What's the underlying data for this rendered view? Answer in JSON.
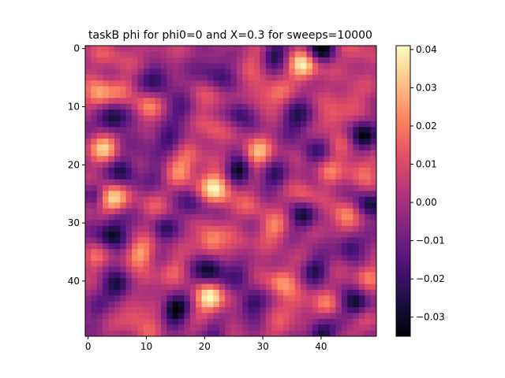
{
  "chart_data": {
    "type": "heatmap",
    "title": "taskB phi for phi0=0 and X=0.3 for sweeps=10000",
    "xlabel": "",
    "ylabel": "",
    "grid_size": 50,
    "x_range": [
      0,
      49
    ],
    "y_range": [
      0,
      49
    ],
    "y_inverted": true,
    "x_ticks": [
      0,
      10,
      20,
      30,
      40
    ],
    "y_ticks": [
      0,
      10,
      20,
      30,
      40
    ],
    "colormap": "magma",
    "value_range": [
      -0.035,
      0.041
    ],
    "colorbar_ticks": [
      {
        "value": 0.04,
        "label": "0.04"
      },
      {
        "value": 0.03,
        "label": "0.03"
      },
      {
        "value": 0.02,
        "label": "0.02"
      },
      {
        "value": 0.01,
        "label": "0.01"
      },
      {
        "value": 0.0,
        "label": "0.00"
      },
      {
        "value": -0.01,
        "label": "−0.01"
      },
      {
        "value": -0.02,
        "label": "−0.02"
      },
      {
        "value": -0.03,
        "label": "−0.03"
      }
    ],
    "features": [
      {
        "x": 37,
        "y": 3,
        "amp": 0.038,
        "w": 1.8
      },
      {
        "x": 40,
        "y": 0,
        "amp": -0.034,
        "w": 1.6
      },
      {
        "x": 32,
        "y": 1,
        "amp": -0.025,
        "w": 1.6
      },
      {
        "x": 28,
        "y": 2,
        "amp": 0.012,
        "w": 2.0
      },
      {
        "x": 46,
        "y": 1,
        "amp": 0.012,
        "w": 2.0
      },
      {
        "x": 12,
        "y": 2,
        "amp": 0.01,
        "w": 2.0
      },
      {
        "x": 4,
        "y": 1,
        "amp": 0.012,
        "w": 2.2
      },
      {
        "x": 12,
        "y": 5,
        "amp": -0.025,
        "w": 2.0
      },
      {
        "x": 22,
        "y": 4,
        "amp": -0.018,
        "w": 2.2
      },
      {
        "x": 2,
        "y": 8,
        "amp": 0.032,
        "w": 1.8
      },
      {
        "x": 6,
        "y": 7,
        "amp": 0.01,
        "w": 1.6
      },
      {
        "x": 10,
        "y": 10,
        "amp": 0.02,
        "w": 1.7
      },
      {
        "x": 4,
        "y": 12,
        "amp": -0.034,
        "w": 1.8
      },
      {
        "x": 16,
        "y": 11,
        "amp": -0.015,
        "w": 1.8
      },
      {
        "x": 21,
        "y": 9,
        "amp": 0.012,
        "w": 2.0
      },
      {
        "x": 21,
        "y": 14,
        "amp": 0.014,
        "w": 1.8
      },
      {
        "x": 26,
        "y": 11,
        "amp": -0.022,
        "w": 1.6
      },
      {
        "x": 30,
        "y": 8,
        "amp": 0.016,
        "w": 1.8
      },
      {
        "x": 33,
        "y": 8,
        "amp": 0.012,
        "w": 1.6
      },
      {
        "x": 36,
        "y": 12,
        "amp": -0.022,
        "w": 2.0
      },
      {
        "x": 42,
        "y": 12,
        "amp": 0.018,
        "w": 1.8
      },
      {
        "x": 45,
        "y": 8,
        "amp": 0.012,
        "w": 2.0
      },
      {
        "x": 47,
        "y": 15,
        "amp": -0.03,
        "w": 1.7
      },
      {
        "x": 3,
        "y": 17,
        "amp": 0.032,
        "w": 1.8
      },
      {
        "x": 9,
        "y": 16,
        "amp": -0.01,
        "w": 1.8
      },
      {
        "x": 14,
        "y": 16,
        "amp": -0.018,
        "w": 1.6
      },
      {
        "x": 16,
        "y": 21,
        "amp": 0.025,
        "w": 1.8
      },
      {
        "x": 6,
        "y": 21,
        "amp": -0.025,
        "w": 1.8
      },
      {
        "x": 12,
        "y": 22,
        "amp": -0.012,
        "w": 1.6
      },
      {
        "x": 18,
        "y": 18,
        "amp": 0.01,
        "w": 1.6
      },
      {
        "x": 29,
        "y": 18,
        "amp": 0.03,
        "w": 1.7
      },
      {
        "x": 26,
        "y": 21,
        "amp": -0.034,
        "w": 1.6
      },
      {
        "x": 32,
        "y": 22,
        "amp": -0.02,
        "w": 1.6
      },
      {
        "x": 39,
        "y": 18,
        "amp": -0.018,
        "w": 1.8
      },
      {
        "x": 41,
        "y": 21,
        "amp": 0.018,
        "w": 1.7
      },
      {
        "x": 43,
        "y": 17,
        "amp": 0.012,
        "w": 1.6
      },
      {
        "x": 47,
        "y": 21,
        "amp": 0.02,
        "w": 1.8
      },
      {
        "x": 22,
        "y": 24,
        "amp": 0.04,
        "w": 1.9
      },
      {
        "x": 18,
        "y": 27,
        "amp": -0.016,
        "w": 1.8
      },
      {
        "x": 4,
        "y": 26,
        "amp": 0.038,
        "w": 1.8
      },
      {
        "x": 1,
        "y": 25,
        "amp": -0.018,
        "w": 1.4
      },
      {
        "x": 5,
        "y": 29,
        "amp": -0.015,
        "w": 1.5
      },
      {
        "x": 11,
        "y": 27,
        "amp": 0.01,
        "w": 1.8
      },
      {
        "x": 13,
        "y": 31,
        "amp": -0.018,
        "w": 1.6
      },
      {
        "x": 28,
        "y": 27,
        "amp": 0.012,
        "w": 1.8
      },
      {
        "x": 32,
        "y": 31,
        "amp": 0.02,
        "w": 1.8
      },
      {
        "x": 37,
        "y": 29,
        "amp": -0.026,
        "w": 1.6
      },
      {
        "x": 37,
        "y": 25,
        "amp": 0.015,
        "w": 1.6
      },
      {
        "x": 44,
        "y": 29,
        "amp": 0.025,
        "w": 1.8
      },
      {
        "x": 48,
        "y": 27,
        "amp": -0.028,
        "w": 1.6
      },
      {
        "x": 4,
        "y": 32,
        "amp": -0.03,
        "w": 1.7
      },
      {
        "x": 9,
        "y": 35,
        "amp": 0.025,
        "w": 1.7
      },
      {
        "x": 21,
        "y": 33,
        "amp": 0.028,
        "w": 1.8
      },
      {
        "x": 26,
        "y": 34,
        "amp": 0.01,
        "w": 1.6
      },
      {
        "x": 1,
        "y": 36,
        "amp": 0.015,
        "w": 1.5
      },
      {
        "x": 15,
        "y": 38,
        "amp": 0.012,
        "w": 1.6
      },
      {
        "x": 21,
        "y": 38,
        "amp": -0.032,
        "w": 1.8
      },
      {
        "x": 26,
        "y": 39,
        "amp": -0.015,
        "w": 1.6
      },
      {
        "x": 33,
        "y": 40,
        "amp": 0.022,
        "w": 1.9
      },
      {
        "x": 39,
        "y": 38,
        "amp": -0.022,
        "w": 1.6
      },
      {
        "x": 45,
        "y": 34,
        "amp": -0.025,
        "w": 1.6
      },
      {
        "x": 48,
        "y": 39,
        "amp": 0.018,
        "w": 1.6
      },
      {
        "x": 5,
        "y": 41,
        "amp": -0.028,
        "w": 1.7
      },
      {
        "x": 10,
        "y": 40,
        "amp": 0.012,
        "w": 1.6
      },
      {
        "x": 1,
        "y": 45,
        "amp": -0.01,
        "w": 1.6
      },
      {
        "x": 8,
        "y": 46,
        "amp": 0.018,
        "w": 1.7
      },
      {
        "x": 15,
        "y": 45,
        "amp": -0.036,
        "w": 1.6
      },
      {
        "x": 21,
        "y": 43,
        "amp": 0.04,
        "w": 1.8
      },
      {
        "x": 28,
        "y": 44,
        "amp": -0.024,
        "w": 1.6
      },
      {
        "x": 36,
        "y": 44,
        "amp": 0.014,
        "w": 1.8
      },
      {
        "x": 41,
        "y": 44,
        "amp": 0.015,
        "w": 1.6
      },
      {
        "x": 46,
        "y": 44,
        "amp": -0.03,
        "w": 1.6
      },
      {
        "x": 40,
        "y": 49,
        "amp": -0.03,
        "w": 1.6
      },
      {
        "x": 33,
        "y": 48,
        "amp": 0.01,
        "w": 1.8
      },
      {
        "x": 22,
        "y": 49,
        "amp": -0.012,
        "w": 1.6
      },
      {
        "x": 11,
        "y": 48,
        "amp": 0.01,
        "w": 1.6
      },
      {
        "x": 48,
        "y": 47,
        "amp": 0.01,
        "w": 1.6
      }
    ]
  },
  "colors": {
    "axis": "#000000",
    "background": "#ffffff"
  }
}
